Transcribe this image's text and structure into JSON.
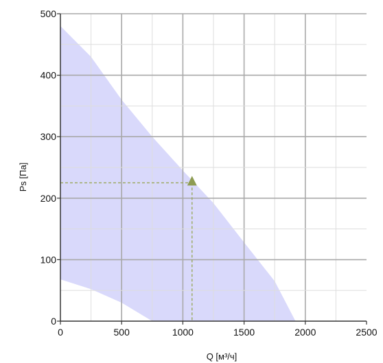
{
  "chart_data": {
    "type": "area",
    "xlabel": "Q [м³/ч]",
    "ylabel": "Ps [Па]",
    "xlim": [
      0,
      2500
    ],
    "ylim": [
      0,
      500
    ],
    "x_ticks": [
      "0",
      "500",
      "1000",
      "1500",
      "2000",
      "2500"
    ],
    "y_ticks": [
      "0",
      "100",
      "200",
      "300",
      "400",
      "500"
    ],
    "grid": true,
    "legend": "none",
    "operating_region": {
      "upper_curve": [
        {
          "x": 0,
          "y": 480
        },
        {
          "x": 250,
          "y": 430
        },
        {
          "x": 500,
          "y": 360
        },
        {
          "x": 750,
          "y": 300
        },
        {
          "x": 1000,
          "y": 245
        },
        {
          "x": 1250,
          "y": 192
        },
        {
          "x": 1500,
          "y": 128
        },
        {
          "x": 1750,
          "y": 65
        },
        {
          "x": 1920,
          "y": 0
        }
      ],
      "lower_curve": [
        {
          "x": 0,
          "y": 68
        },
        {
          "x": 250,
          "y": 52
        },
        {
          "x": 500,
          "y": 30
        },
        {
          "x": 750,
          "y": 0
        }
      ]
    },
    "operating_point": {
      "x": 1075,
      "y": 225
    },
    "colors": {
      "region_fill": "#d9d9fb",
      "grid": "#a9a9a9",
      "axis": "#333333",
      "marker": "#8e9c52",
      "guide": "#9aa85c"
    }
  }
}
